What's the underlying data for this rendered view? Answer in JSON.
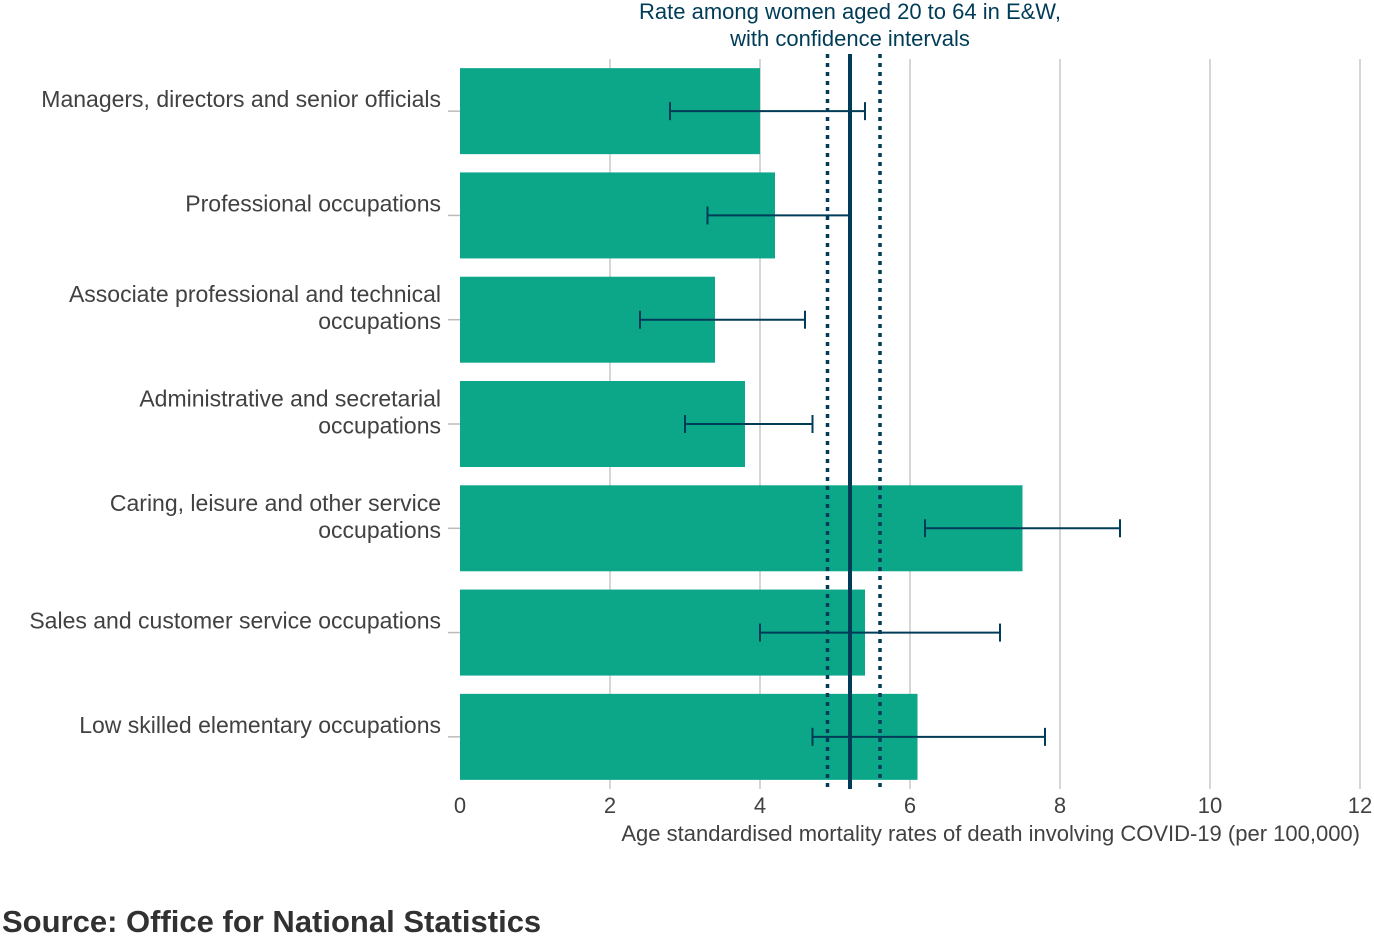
{
  "chart_data": {
    "type": "bar",
    "orientation": "horizontal",
    "categories": [
      [
        "Managers, directors and senior officials"
      ],
      [
        "Professional occupations"
      ],
      [
        "Associate professional and technical",
        "occupations"
      ],
      [
        "Administrative and secretarial",
        "occupations"
      ],
      [
        "Caring, leisure and other service",
        "occupations"
      ],
      [
        "Sales and customer service occupations"
      ],
      [
        "Low skilled elementary occupations"
      ]
    ],
    "values": [
      4.0,
      4.2,
      3.4,
      3.8,
      7.5,
      5.4,
      6.1
    ],
    "error_low": [
      2.8,
      3.3,
      2.4,
      3.0,
      6.2,
      4.0,
      4.7
    ],
    "error_high": [
      5.4,
      5.2,
      4.6,
      4.7,
      8.8,
      7.2,
      7.8
    ],
    "reference_line": {
      "label_lines": [
        "Rate among women aged 20 to 64 in E&W,",
        "with confidence intervals"
      ],
      "value": 5.2,
      "ci_low": 4.9,
      "ci_high": 5.6
    },
    "xlabel": "Age standardised mortality rates of death involving COVID-19 (per 100,000)",
    "xlim": [
      0,
      12
    ],
    "xticks": [
      0,
      2,
      4,
      6,
      8,
      10,
      12
    ],
    "grid": true,
    "colors": {
      "bar": "#0ca789",
      "errorbar": "#003c57",
      "reference": "#003c57",
      "grid": "#c8c8c8"
    }
  },
  "source": "Source: Office for National Statistics"
}
